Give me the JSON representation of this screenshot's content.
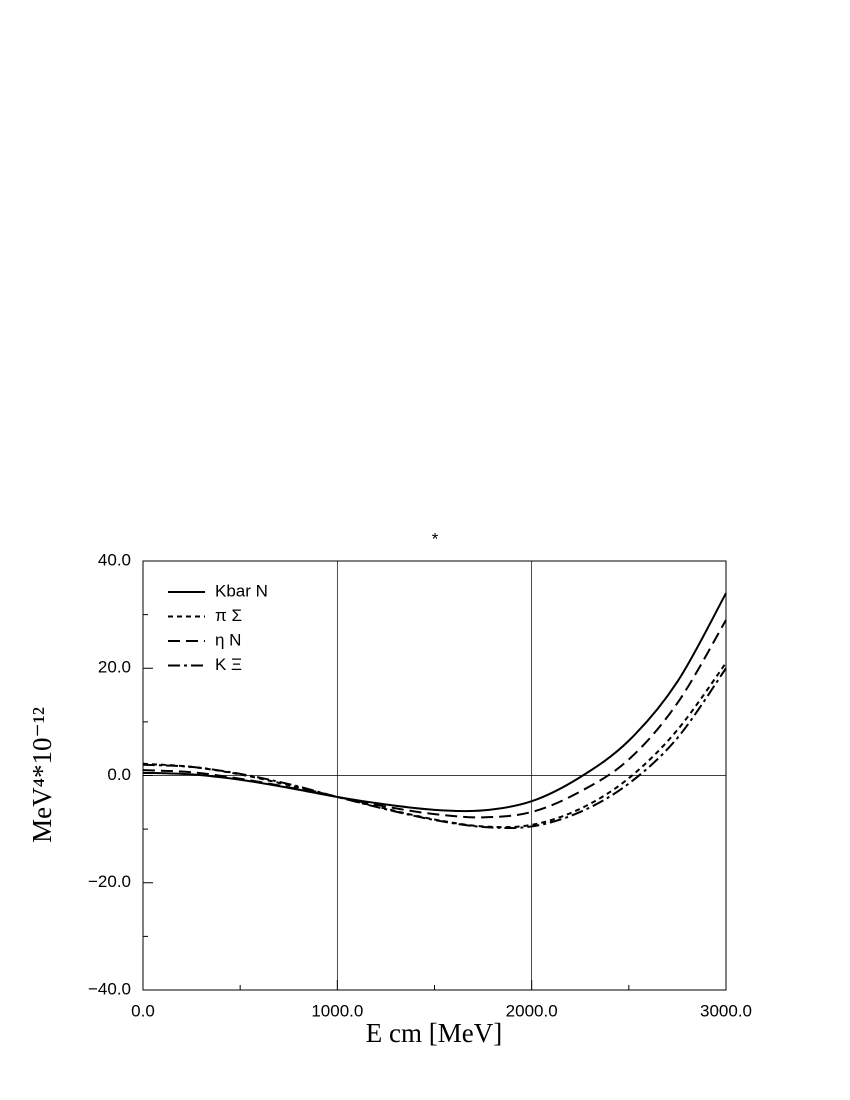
{
  "chart_data": {
    "type": "line",
    "title": "*",
    "xlabel": "E cm [MeV]",
    "ylabel": "MeV⁴*10⁻¹²",
    "x": [
      0,
      250,
      500,
      750,
      1000,
      1250,
      1500,
      1750,
      2000,
      2250,
      2500,
      2750,
      3000
    ],
    "series": [
      {
        "name": "Kbar N",
        "color": "#000000",
        "dash": "none",
        "values": [
          0.5,
          0.2,
          -0.8,
          -2.3,
          -4.0,
          -5.4,
          -6.4,
          -6.5,
          -4.8,
          -0.3,
          6.5,
          17.5,
          34.0
        ]
      },
      {
        "name": "π Σ",
        "color": "#000000",
        "dash": "5,4",
        "values": [
          2.2,
          1.6,
          0.2,
          -1.8,
          -4.0,
          -6.2,
          -8.2,
          -9.5,
          -9.2,
          -6.2,
          -0.5,
          8.5,
          21.0
        ]
      },
      {
        "name": "η N",
        "color": "#000000",
        "dash": "12,6",
        "values": [
          1.0,
          0.6,
          -0.6,
          -2.2,
          -4.0,
          -5.8,
          -7.2,
          -7.8,
          -6.8,
          -3.0,
          3.0,
          13.5,
          29.0
        ]
      },
      {
        "name": "K Ξ",
        "color": "#000000",
        "dash": "12,4,3,4",
        "values": [
          2.0,
          1.6,
          0.3,
          -1.6,
          -4.0,
          -6.3,
          -8.3,
          -9.6,
          -9.5,
          -6.8,
          -1.5,
          7.0,
          20.0
        ]
      }
    ],
    "xlim": [
      0,
      3000
    ],
    "xticks": [
      {
        "value": 0,
        "label": "0.0"
      },
      {
        "value": 1000,
        "label": "1000.0"
      },
      {
        "value": 2000,
        "label": "2000.0"
      },
      {
        "value": 3000,
        "label": "3000.0"
      }
    ],
    "xminorticks": [
      500,
      1500,
      2500
    ],
    "ylim": [
      -40,
      40
    ],
    "yticks": [
      {
        "value": -40,
        "label": "−40.0"
      },
      {
        "value": -20,
        "label": "−20.0"
      },
      {
        "value": 0,
        "label": "0.0"
      },
      {
        "value": 20,
        "label": "20.0"
      },
      {
        "value": 40,
        "label": "40.0"
      }
    ],
    "yminorticks": [
      -30,
      -10,
      10,
      30
    ],
    "xgrid": [
      1000,
      2000
    ],
    "ygrid": [
      0
    ],
    "legend": "upper-left"
  }
}
